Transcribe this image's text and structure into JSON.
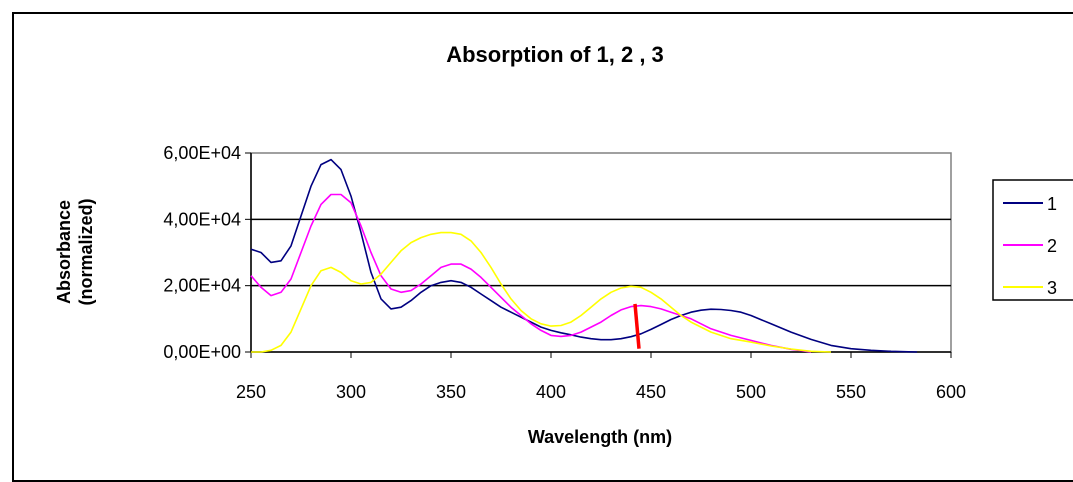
{
  "chart_data": {
    "type": "line",
    "title": "Absorption of 1, 2 , 3",
    "xlabel": "Wavelength (nm)",
    "ylabel_lines": [
      "Absorbance",
      "(normalized)"
    ],
    "xlim": [
      250,
      600
    ],
    "ylim": [
      0,
      60000
    ],
    "x_ticks": [
      "250",
      "300",
      "350",
      "400",
      "450",
      "500",
      "550",
      "600"
    ],
    "y_ticks": [
      "0,00E+00",
      "2,00E+04",
      "4,00E+04",
      "6,00E+04"
    ],
    "grid": "horizontal",
    "legend_position": "right",
    "series": [
      {
        "name": "1",
        "color": "#000080",
        "points": [
          [
            250,
            31000
          ],
          [
            255,
            30000
          ],
          [
            260,
            27000
          ],
          [
            265,
            27500
          ],
          [
            270,
            32000
          ],
          [
            275,
            41000
          ],
          [
            280,
            50000
          ],
          [
            285,
            56500
          ],
          [
            290,
            58000
          ],
          [
            295,
            55000
          ],
          [
            300,
            47000
          ],
          [
            305,
            36000
          ],
          [
            310,
            24000
          ],
          [
            315,
            16000
          ],
          [
            320,
            13000
          ],
          [
            325,
            13500
          ],
          [
            330,
            15500
          ],
          [
            335,
            18000
          ],
          [
            340,
            20000
          ],
          [
            345,
            21000
          ],
          [
            350,
            21500
          ],
          [
            355,
            21000
          ],
          [
            360,
            19500
          ],
          [
            365,
            17500
          ],
          [
            370,
            15500
          ],
          [
            375,
            13500
          ],
          [
            380,
            12000
          ],
          [
            385,
            10500
          ],
          [
            390,
            9000
          ],
          [
            395,
            7500
          ],
          [
            400,
            6500
          ],
          [
            405,
            5800
          ],
          [
            410,
            5200
          ],
          [
            415,
            4500
          ],
          [
            420,
            4000
          ],
          [
            425,
            3700
          ],
          [
            430,
            3700
          ],
          [
            435,
            4000
          ],
          [
            440,
            4600
          ],
          [
            445,
            5500
          ],
          [
            450,
            6800
          ],
          [
            455,
            8300
          ],
          [
            460,
            9800
          ],
          [
            465,
            11000
          ],
          [
            470,
            12000
          ],
          [
            475,
            12600
          ],
          [
            480,
            12900
          ],
          [
            485,
            12800
          ],
          [
            490,
            12500
          ],
          [
            495,
            12000
          ],
          [
            500,
            11000
          ],
          [
            510,
            8500
          ],
          [
            520,
            6000
          ],
          [
            530,
            3800
          ],
          [
            540,
            2000
          ],
          [
            550,
            1000
          ],
          [
            560,
            500
          ],
          [
            570,
            200
          ],
          [
            583,
            0
          ]
        ]
      },
      {
        "name": "2",
        "color": "#ff00ff",
        "points": [
          [
            250,
            23000
          ],
          [
            255,
            19500
          ],
          [
            260,
            17000
          ],
          [
            265,
            18000
          ],
          [
            270,
            22000
          ],
          [
            275,
            30000
          ],
          [
            280,
            38000
          ],
          [
            285,
            44500
          ],
          [
            290,
            47500
          ],
          [
            295,
            47500
          ],
          [
            300,
            45000
          ],
          [
            305,
            38000
          ],
          [
            310,
            30000
          ],
          [
            315,
            23000
          ],
          [
            320,
            19000
          ],
          [
            325,
            18000
          ],
          [
            330,
            18500
          ],
          [
            335,
            20500
          ],
          [
            340,
            23000
          ],
          [
            345,
            25500
          ],
          [
            350,
            26500
          ],
          [
            355,
            26500
          ],
          [
            360,
            25000
          ],
          [
            365,
            22500
          ],
          [
            370,
            19500
          ],
          [
            375,
            16500
          ],
          [
            380,
            13500
          ],
          [
            385,
            11000
          ],
          [
            390,
            8500
          ],
          [
            395,
            6500
          ],
          [
            400,
            5000
          ],
          [
            405,
            4700
          ],
          [
            410,
            5000
          ],
          [
            415,
            6000
          ],
          [
            420,
            7500
          ],
          [
            425,
            9000
          ],
          [
            430,
            11000
          ],
          [
            435,
            12700
          ],
          [
            440,
            13700
          ],
          [
            445,
            14000
          ],
          [
            450,
            13700
          ],
          [
            455,
            13000
          ],
          [
            460,
            12000
          ],
          [
            465,
            11000
          ],
          [
            470,
            10000
          ],
          [
            475,
            8500
          ],
          [
            480,
            7000
          ],
          [
            490,
            5000
          ],
          [
            500,
            3500
          ],
          [
            510,
            2000
          ],
          [
            520,
            800
          ],
          [
            530,
            0
          ]
        ]
      },
      {
        "name": "3",
        "color": "#ffff00",
        "points": [
          [
            250,
            0
          ],
          [
            255,
            0
          ],
          [
            260,
            500
          ],
          [
            265,
            2000
          ],
          [
            270,
            6000
          ],
          [
            275,
            13000
          ],
          [
            280,
            20000
          ],
          [
            285,
            24500
          ],
          [
            290,
            25500
          ],
          [
            295,
            24000
          ],
          [
            300,
            21500
          ],
          [
            305,
            20500
          ],
          [
            310,
            21000
          ],
          [
            315,
            23500
          ],
          [
            320,
            27000
          ],
          [
            325,
            30500
          ],
          [
            330,
            33000
          ],
          [
            335,
            34500
          ],
          [
            340,
            35500
          ],
          [
            345,
            36000
          ],
          [
            350,
            36000
          ],
          [
            355,
            35500
          ],
          [
            360,
            33500
          ],
          [
            365,
            30000
          ],
          [
            370,
            25500
          ],
          [
            375,
            20500
          ],
          [
            380,
            16000
          ],
          [
            385,
            12500
          ],
          [
            390,
            10000
          ],
          [
            395,
            8500
          ],
          [
            400,
            7800
          ],
          [
            405,
            8000
          ],
          [
            410,
            9000
          ],
          [
            415,
            11000
          ],
          [
            420,
            13500
          ],
          [
            425,
            16000
          ],
          [
            430,
            18000
          ],
          [
            435,
            19300
          ],
          [
            440,
            19800
          ],
          [
            445,
            19500
          ],
          [
            450,
            18000
          ],
          [
            455,
            16000
          ],
          [
            460,
            13500
          ],
          [
            465,
            11000
          ],
          [
            470,
            9000
          ],
          [
            480,
            6000
          ],
          [
            490,
            4000
          ],
          [
            500,
            3000
          ],
          [
            510,
            1800
          ],
          [
            520,
            900
          ],
          [
            530,
            200
          ],
          [
            540,
            0
          ]
        ]
      }
    ],
    "marker_line": {
      "color": "#ff0000",
      "from": [
        442,
        14500
      ],
      "to": [
        444,
        1000
      ]
    }
  }
}
